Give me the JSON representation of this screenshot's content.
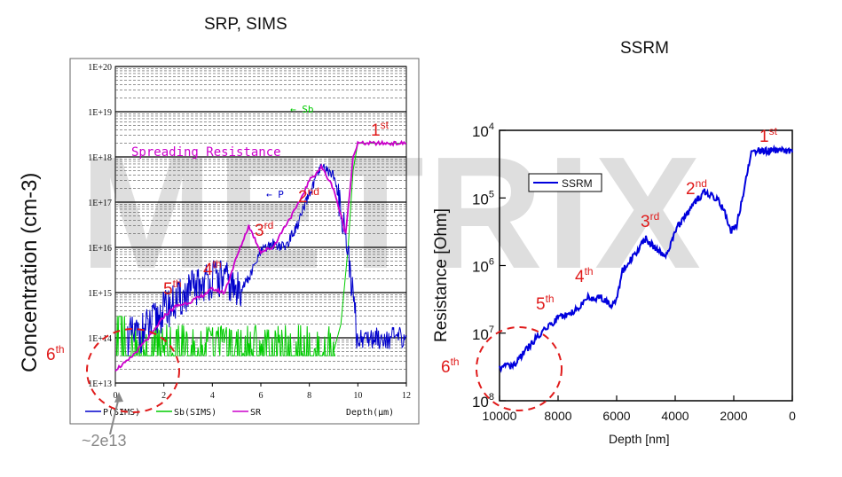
{
  "watermark": "METRIX",
  "left": {
    "title": "SRP, SIMS",
    "ylabel": "Concentration (cm-3)",
    "xlabel": "Depth(μm)",
    "yticks": [
      "1E+13",
      "1E+14",
      "1E+15",
      "1E+16",
      "1E+17",
      "1E+18",
      "1E+19",
      "1E+20"
    ],
    "xticks": [
      "0",
      "2",
      "4",
      "6",
      "8",
      "10",
      "12"
    ],
    "legend": [
      "P(SIMS)",
      "Sb(SIMS)",
      "SR"
    ],
    "curve_label": "Spreading Resistance",
    "sb_label": "← Sb",
    "p_label": "← P",
    "callout": "~2e13"
  },
  "right": {
    "title": "SSRM",
    "ylabel": "Resistance [Ohm]",
    "xlabel": "Depth [nm]",
    "xticks": [
      "10000",
      "8000",
      "6000",
      "4000",
      "2000",
      "0"
    ],
    "yticks_exp": [
      "4",
      "5",
      "6",
      "7",
      "8"
    ],
    "ytick_base": "10",
    "legend": "SSRM"
  },
  "annotations": {
    "left": [
      {
        "num": "1",
        "suf": "st"
      },
      {
        "num": "2",
        "suf": "nd"
      },
      {
        "num": "3",
        "suf": "rd"
      },
      {
        "num": "4",
        "suf": "th"
      },
      {
        "num": "5",
        "suf": "th"
      },
      {
        "num": "6",
        "suf": "th"
      }
    ],
    "right": [
      {
        "num": "1",
        "suf": "st"
      },
      {
        "num": "2",
        "suf": "nd"
      },
      {
        "num": "3",
        "suf": "rd"
      },
      {
        "num": "4",
        "suf": "th"
      },
      {
        "num": "5",
        "suf": "th"
      },
      {
        "num": "6",
        "suf": "th"
      }
    ]
  },
  "chart_data": [
    {
      "type": "line",
      "title": "SRP, SIMS",
      "xlabel": "Depth(μm)",
      "ylabel": "Concentration (cm-3)",
      "xlim": [
        0,
        12
      ],
      "ylim": [
        10000000000000.0,
        1e+20
      ],
      "yscale": "log",
      "grid": true,
      "legend_position": "bottom",
      "series": [
        {
          "name": "SR",
          "color": "#cc00cc",
          "x": [
            0,
            0.5,
            1,
            1.5,
            2,
            2.5,
            3,
            3.5,
            4,
            4.5,
            5,
            5.5,
            6,
            6.5,
            7,
            7.5,
            8,
            8.5,
            9,
            9.5,
            9.8,
            10,
            10.5,
            11,
            11.5,
            12
          ],
          "y": [
            20000000000000.0,
            30000000000000.0,
            60000000000000.0,
            120000000000000.0,
            300000000000000.0,
            500000000000000.0,
            600000000000000.0,
            800000000000000.0,
            1200000000000000.0,
            1000000000000000.0,
            6000000000000000.0,
            3e+16,
            8000000000000000.0,
            1e+16,
            3e+16,
            8e+16,
            3e+17,
            6e+17,
            2e+17,
            2e+16,
            1e+18,
            2e+18,
            2e+18,
            2e+18,
            2e+18,
            2e+18
          ]
        },
        {
          "name": "P(SIMS)",
          "color": "#0000cc",
          "x": [
            0.5,
            1,
            1.5,
            2,
            2.5,
            3,
            3.5,
            4,
            4.5,
            5,
            5.5,
            6,
            6.5,
            7,
            7.5,
            8,
            8.5,
            9,
            9.5,
            10,
            10.5,
            11,
            11.5,
            12
          ],
          "y": [
            100000000000000.0,
            120000000000000.0,
            200000000000000.0,
            400000000000000.0,
            600000000000000.0,
            1000000000000000.0,
            1500000000000000.0,
            2000000000000000.0,
            2000000000000000.0,
            1000000000000000.0,
            2000000000000000.0,
            8000000000000000.0,
            1.2e+16,
            1e+16,
            3e+16,
            1.5e+17,
            6e+17,
            4e+17,
            2e+16,
            100000000000000.0,
            100000000000000.0,
            100000000000000.0,
            100000000000000.0,
            100000000000000.0
          ]
        },
        {
          "name": "Sb(SIMS)",
          "color": "#00cc00",
          "x": [
            9.0,
            9.3,
            9.6,
            9.8,
            10,
            10.5,
            11,
            11.5,
            12
          ],
          "y": [
            50000000000000.0,
            200000000000000.0,
            1e+16,
            5e+17,
            2e+18,
            2e+18,
            2e+18,
            2e+18,
            2e+18
          ]
        }
      ]
    },
    {
      "type": "line",
      "title": "SSRM",
      "xlabel": "Depth [nm]",
      "ylabel": "Resistance [Ohm]",
      "xlim": [
        10000,
        0
      ],
      "ylim": [
        100000000.0,
        10000.0
      ],
      "yscale": "log",
      "legend_position": "top-left",
      "series": [
        {
          "name": "SSRM",
          "color": "#0000dd",
          "x": [
            10000,
            9500,
            9000,
            8500,
            8000,
            7500,
            7000,
            6500,
            6200,
            6000,
            5800,
            5500,
            5000,
            4600,
            4300,
            4000,
            3500,
            3000,
            2600,
            2300,
            2100,
            1900,
            1700,
            1400,
            1000,
            500,
            0
          ],
          "y": [
            32000000.0,
            30000000.0,
            16000000.0,
            9000000.0,
            6000000.0,
            5000000.0,
            3000000.0,
            3000000.0,
            4000000.0,
            3000000.0,
            1200000.0,
            800000.0,
            400000.0,
            600000.0,
            700000.0,
            300000.0,
            150000.0,
            80000.0,
            100000.0,
            160000.0,
            300000.0,
            250000.0,
            100000.0,
            20000.0,
            20000.0,
            20000.0,
            20000.0
          ]
        }
      ]
    }
  ]
}
